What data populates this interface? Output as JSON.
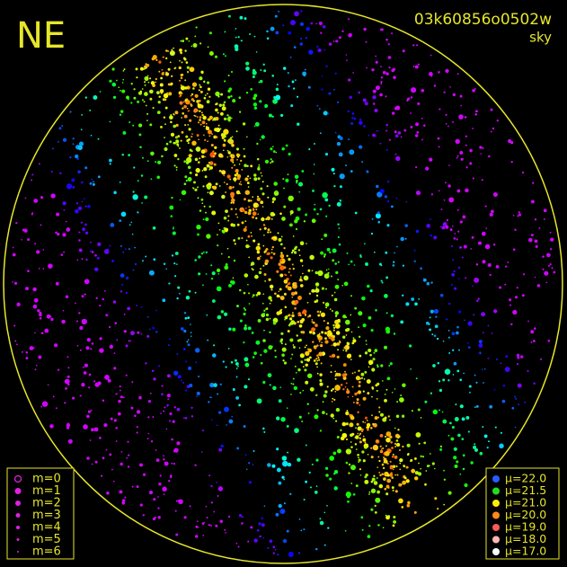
{
  "header": {
    "title": "NE",
    "field": "03k60856o0502w",
    "subtitle": "sky"
  },
  "legend_m": {
    "color": "#e020e0",
    "items": [
      "m=0",
      "m=1",
      "m=2",
      "m=3",
      "m=4",
      "m=5",
      "m=6"
    ]
  },
  "legend_mu": {
    "items": [
      {
        "label": "μ=22.0",
        "color": "#2a5cff"
      },
      {
        "label": "μ=21.5",
        "color": "#22dd22"
      },
      {
        "label": "μ=21.0",
        "color": "#ffee00"
      },
      {
        "label": "μ=20.0",
        "color": "#ff8a1a"
      },
      {
        "label": "μ=19.0",
        "color": "#ff5a5a"
      },
      {
        "label": "μ=18.0",
        "color": "#ffb8b8"
      },
      {
        "label": "μ=17.0",
        "color": "#ffffff"
      }
    ]
  }
}
